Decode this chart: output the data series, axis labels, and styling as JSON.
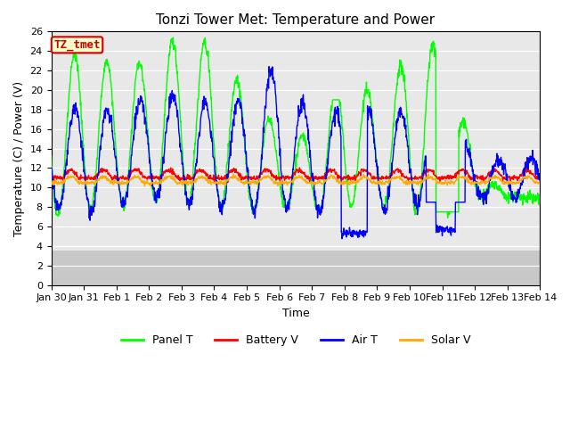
{
  "title": "Tonzi Tower Met: Temperature and Power",
  "xlabel": "Time",
  "ylabel": "Temperature (C) / Power (V)",
  "annotation_text": "TZ_tmet",
  "annotation_bg": "#ffffcc",
  "annotation_border": "#cc0000",
  "annotation_text_color": "#cc0000",
  "ylim": [
    0,
    26
  ],
  "yticks": [
    0,
    2,
    4,
    6,
    8,
    10,
    12,
    14,
    16,
    18,
    20,
    22,
    24,
    26
  ],
  "xtick_labels": [
    "Jan 30",
    "Jan 31",
    "Feb 1",
    "Feb 2",
    "Feb 3",
    "Feb 4",
    "Feb 5",
    "Feb 6",
    "Feb 7",
    "Feb 8",
    "Feb 9",
    "Feb 10",
    "Feb 11",
    "Feb 12",
    "Feb 13",
    "Feb 14"
  ],
  "legend_labels": [
    "Panel T",
    "Battery V",
    "Air T",
    "Solar V"
  ],
  "line_colors": {
    "panel_t": "#00ff00",
    "battery_v": "#ff0000",
    "air_t": "#0000ff",
    "solar_v": "#ffaa00"
  },
  "line_widths": {
    "panel_t": 1.0,
    "battery_v": 1.0,
    "air_t": 1.0,
    "solar_v": 1.0
  },
  "bg_data": "#e8e8e8",
  "bg_lower_band": "#c8c8c8",
  "bg_lower_cutoff": 3.5,
  "fig_bg": "#ffffff",
  "grid_color": "#ffffff",
  "title_fontsize": 11,
  "axis_fontsize": 9,
  "tick_fontsize": 8
}
